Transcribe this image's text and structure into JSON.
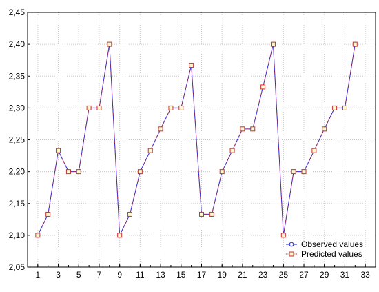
{
  "chart_data": {
    "type": "line",
    "title": "",
    "xlabel": "",
    "ylabel": "",
    "x": [
      1,
      2,
      3,
      4,
      5,
      6,
      7,
      8,
      9,
      10,
      11,
      12,
      13,
      14,
      15,
      16,
      17,
      18,
      19,
      20,
      21,
      22,
      23,
      24,
      25,
      26,
      27,
      28,
      29,
      30,
      31,
      32
    ],
    "xlim": [
      0,
      34
    ],
    "ylim": [
      2.05,
      2.45
    ],
    "xticks": [
      1,
      3,
      5,
      7,
      9,
      11,
      13,
      15,
      17,
      19,
      21,
      23,
      25,
      27,
      29,
      31,
      33
    ],
    "xtick_labels": [
      "1",
      "3",
      "5",
      "7",
      "9",
      "11",
      "13",
      "15",
      "17",
      "19",
      "21",
      "23",
      "25",
      "27",
      "29",
      "31",
      "33"
    ],
    "yticks": [
      2.05,
      2.1,
      2.15,
      2.2,
      2.25,
      2.3,
      2.35,
      2.4,
      2.45
    ],
    "ytick_labels": [
      "2,05",
      "2,10",
      "2,15",
      "2,20",
      "2,25",
      "2,30",
      "2,35",
      "2,40",
      "2,45"
    ],
    "grid": true,
    "legend_position": "bottom-right",
    "series": [
      {
        "name": "Observed values",
        "color": "#2020e0",
        "marker": "circle",
        "values": [
          2.1,
          2.133,
          2.233,
          2.2,
          2.2,
          2.3,
          2.3,
          2.4,
          2.1,
          2.133,
          2.2,
          2.233,
          2.267,
          2.3,
          2.3,
          2.367,
          2.133,
          2.133,
          2.2,
          2.233,
          2.267,
          2.267,
          2.333,
          2.4,
          2.1,
          2.2,
          2.2,
          2.233,
          2.267,
          2.3,
          2.3,
          2.4
        ]
      },
      {
        "name": "Predicted values",
        "color": "#c83232",
        "marker": "square",
        "values": [
          2.1,
          2.133,
          2.233,
          2.2,
          2.2,
          2.3,
          2.3,
          2.4,
          2.1,
          2.133,
          2.2,
          2.233,
          2.267,
          2.3,
          2.3,
          2.367,
          2.133,
          2.133,
          2.2,
          2.233,
          2.267,
          2.267,
          2.333,
          2.4,
          2.1,
          2.2,
          2.2,
          2.233,
          2.267,
          2.3,
          2.3,
          2.4
        ]
      }
    ]
  }
}
